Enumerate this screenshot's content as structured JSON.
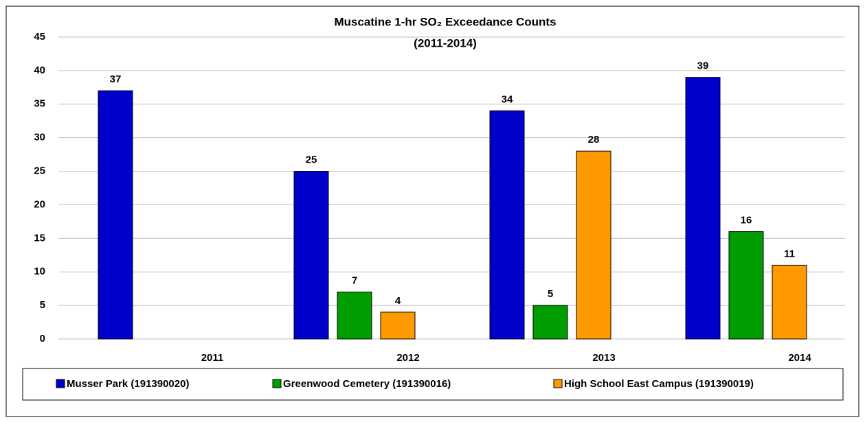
{
  "chart_data": {
    "type": "bar",
    "title": "Muscatine 1-hr SO₂ Exceedance Counts",
    "subtitle": "(2011-2014)",
    "categories": [
      "2011",
      "2012",
      "2013",
      "2014"
    ],
    "series": [
      {
        "name": "Musser Park (191390020)",
        "color": "#0000cc",
        "values": [
          37,
          25,
          34,
          39
        ]
      },
      {
        "name": "Greenwood Cemetery (191390016)",
        "color": "#009e00",
        "values": [
          null,
          7,
          5,
          16
        ]
      },
      {
        "name": "High School East Campus (191390019)",
        "color": "#ff9900",
        "values": [
          null,
          4,
          28,
          11
        ]
      }
    ],
    "ylim": [
      0,
      45
    ],
    "yticks": [
      0,
      5,
      10,
      15,
      20,
      25,
      30,
      35,
      40,
      45
    ],
    "grid": true,
    "legend": "bottom"
  }
}
